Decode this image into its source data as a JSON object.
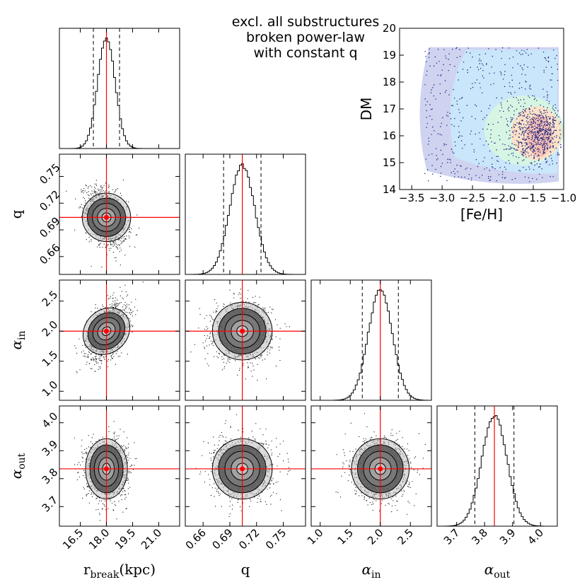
{
  "title_lines": [
    "excl. all substructures",
    "broken power-law",
    "with constant q"
  ],
  "chart_data": {
    "type": "corner",
    "parameters": [
      {
        "key": "rbreak",
        "label_main": "r",
        "label_sub": "break",
        "label_suffix": "(kpc)",
        "range": [
          15.3,
          22.2
        ],
        "ticks": [
          16.5,
          18.0,
          19.5,
          21.0
        ],
        "tick_labels": [
          "16.5",
          "18.0",
          "19.5",
          "21.0"
        ],
        "median": 18.0,
        "lo": 17.25,
        "hi": 18.75,
        "sigma": 0.5
      },
      {
        "key": "q",
        "label_main": "q",
        "label_sub": "",
        "label_suffix": "",
        "range": [
          0.64,
          0.775
        ],
        "ticks": [
          0.66,
          0.69,
          0.72,
          0.75
        ],
        "tick_labels": [
          "0.66",
          "0.69",
          "0.72",
          "0.75"
        ],
        "median": 0.704,
        "lo": 0.683,
        "hi": 0.725,
        "sigma": 0.014
      },
      {
        "key": "ain",
        "label_main": "α",
        "label_sub": "in",
        "label_suffix": "",
        "range": [
          0.85,
          2.85
        ],
        "ticks": [
          1.0,
          1.5,
          2.0,
          2.5
        ],
        "tick_labels": [
          "1.0",
          "1.5",
          "2.0",
          "2.5"
        ],
        "median": 2.0,
        "lo": 1.7,
        "hi": 2.3,
        "sigma": 0.2
      },
      {
        "key": "aout",
        "label_main": "α",
        "label_sub": "out",
        "label_suffix": "",
        "range": [
          3.63,
          4.06
        ],
        "ticks": [
          3.7,
          3.8,
          3.9,
          4.0
        ],
        "tick_labels": [
          "3.7",
          "3.8",
          "3.9",
          "4.0"
        ],
        "median": 3.835,
        "lo": 3.765,
        "hi": 3.905,
        "sigma": 0.045
      }
    ],
    "truth": {
      "rbreak": 18.0,
      "q": 0.704,
      "ain": 2.0,
      "aout": 3.835
    },
    "correlations": {
      "q|rbreak": -0.35,
      "ain|rbreak": 0.45,
      "ain|q": 0.0,
      "aout|rbreak": 0.0,
      "aout|q": 0.0,
      "aout|ain": 0.0
    },
    "inset": {
      "type": "scatter",
      "xlabel": "[Fe/H]",
      "ylabel": "DM",
      "xlim": [
        -3.7,
        -1.0
      ],
      "ylim": [
        14,
        20
      ],
      "xticks": [
        -3.5,
        -3.0,
        -2.5,
        -2.0,
        -1.5,
        -1.0
      ],
      "xtick_labels": [
        "−3.5",
        "−3.0",
        "−2.5",
        "−2.0",
        "−1.5",
        "−1.0"
      ],
      "yticks": [
        14,
        15,
        16,
        17,
        18,
        19,
        20
      ],
      "ytick_labels": [
        "14",
        "15",
        "16",
        "17",
        "18",
        "19",
        "20"
      ],
      "point_color": "#1a237e",
      "density_colors": [
        "#cfd3f0",
        "#c9e6fb",
        "#d6f5e3",
        "#fbe1c8",
        "#f4c0b4"
      ]
    },
    "colors": {
      "median_line": "#ff0000",
      "contour": "#000000",
      "hist": "#000000"
    }
  }
}
